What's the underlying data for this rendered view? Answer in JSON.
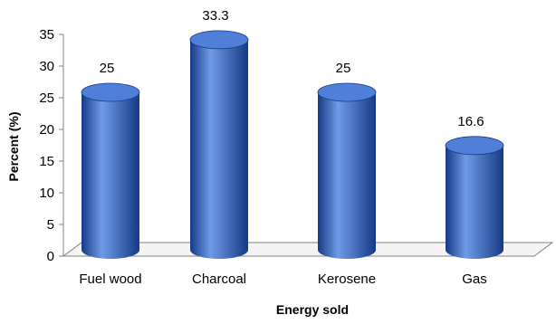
{
  "chart_data": {
    "type": "bar",
    "categories": [
      "Fuel wood",
      "Charcoal",
      "Kerosene",
      "Gas"
    ],
    "values": [
      25,
      33.3,
      25,
      16.6
    ],
    "data_labels": [
      "25",
      "33.3",
      "25",
      "16.6"
    ],
    "xlabel": "Energy sold",
    "ylabel": "Percent (%)",
    "ylim": [
      0,
      35
    ],
    "yticks": [
      0,
      5,
      10,
      15,
      20,
      25,
      30,
      35
    ],
    "grid": false,
    "style": "3d-cylinder",
    "colors": {
      "bar": "#2f62c4",
      "bar_light": "#6f9be6",
      "bar_dark": "#163a85",
      "bar_top": "#4f7fd8",
      "floor": "#f4f4f4",
      "axis": "#808080"
    }
  }
}
